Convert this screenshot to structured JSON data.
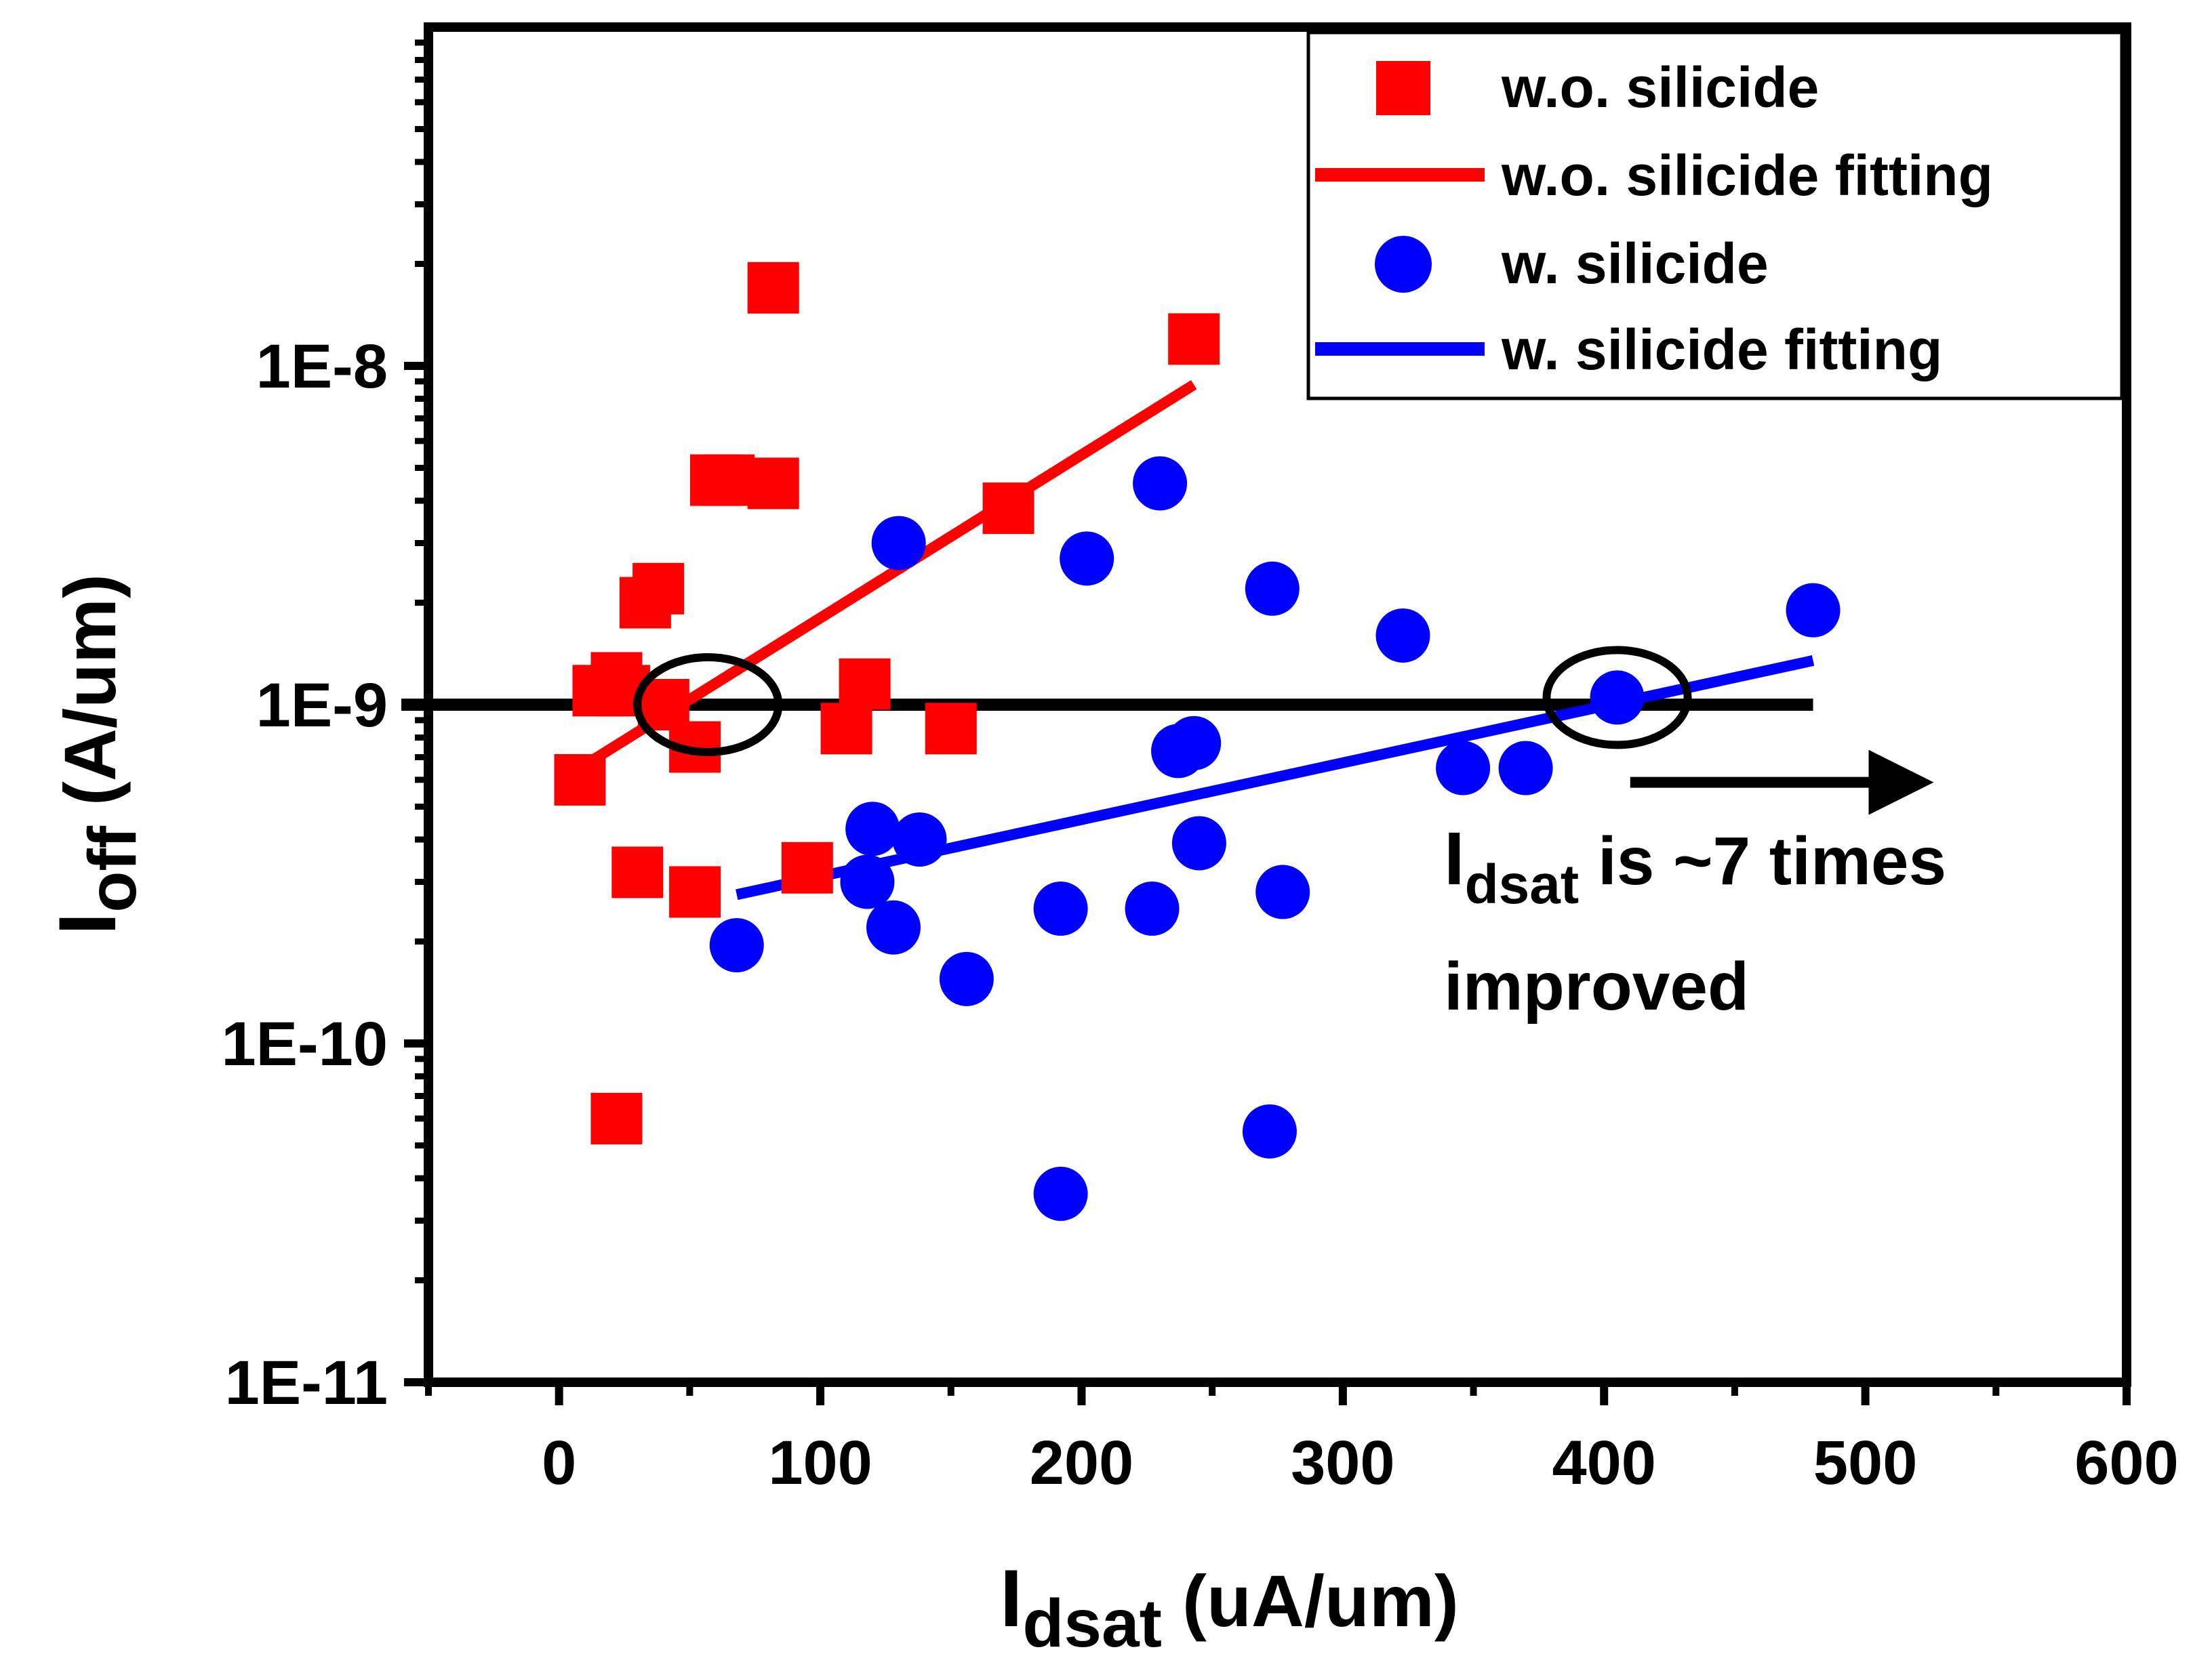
{
  "chart_data": {
    "type": "scatter",
    "x": {
      "label_main": "I",
      "label_sub": "dsat",
      "label_units": " (uA/um)",
      "range": [
        -50,
        600
      ],
      "ticks": [
        0,
        100,
        200,
        300,
        400,
        500,
        600
      ],
      "tick_labels": [
        "0",
        "100",
        "200",
        "300",
        "400",
        "500",
        "600"
      ],
      "scale": "linear"
    },
    "y": {
      "label_main": "I",
      "label_sub": "off",
      "label_units": " (A/um)",
      "range": [
        1e-11,
        1e-07
      ],
      "ticks": [
        1e-11,
        1e-10,
        1e-09,
        1e-08
      ],
      "tick_labels": [
        "1E-11",
        "1E-10",
        "1E-9",
        "1E-8"
      ],
      "scale": "log"
    },
    "series": [
      {
        "name": "w.o. silicide",
        "marker": "square",
        "color": "#ff0000",
        "points": [
          [
            8,
            6e-10
          ],
          [
            15,
            1.1e-09
          ],
          [
            22,
            1.2e-09
          ],
          [
            25,
            1.1e-09
          ],
          [
            30,
            3.2e-10
          ],
          [
            33,
            2e-09
          ],
          [
            38,
            2.2e-09
          ],
          [
            40,
            1e-09
          ],
          [
            52,
            2.8e-10
          ],
          [
            52,
            7.5e-10
          ],
          [
            60,
            4.6e-09
          ],
          [
            65,
            4.6e-09
          ],
          [
            82,
            1.7e-08
          ],
          [
            82,
            4.5e-09
          ],
          [
            95,
            3.3e-10
          ],
          [
            110,
            8.5e-10
          ],
          [
            117,
            1.15e-09
          ],
          [
            150,
            8.5e-10
          ],
          [
            172,
            3.8e-09
          ],
          [
            243,
            1.2e-08
          ],
          [
            22,
            6e-11
          ]
        ]
      },
      {
        "name": "w.o. silicide fitting",
        "line": true,
        "color": "#ff0000",
        "points": [
          [
            8,
            6.5e-10
          ],
          [
            243,
            8.8e-09
          ]
        ]
      },
      {
        "name": "w. silicide",
        "marker": "circle",
        "color": "#0000ff",
        "points": [
          [
            68,
            1.95e-10
          ],
          [
            118,
            3e-10
          ],
          [
            120,
            4.3e-10
          ],
          [
            128,
            2.2e-10
          ],
          [
            130,
            3e-09
          ],
          [
            138,
            4e-10
          ],
          [
            156,
            1.55e-10
          ],
          [
            192,
            3.6e-11
          ],
          [
            192,
            2.5e-10
          ],
          [
            202,
            2.7e-09
          ],
          [
            227,
            2.5e-10
          ],
          [
            230,
            4.5e-09
          ],
          [
            237,
            7.3e-10
          ],
          [
            243,
            7.7e-10
          ],
          [
            245,
            3.9e-10
          ],
          [
            272,
            5.5e-11
          ],
          [
            273,
            2.2e-09
          ],
          [
            277,
            2.8e-10
          ],
          [
            323,
            1.6e-09
          ],
          [
            346,
            6.5e-10
          ],
          [
            370,
            6.5e-10
          ],
          [
            405,
            1.05e-09
          ],
          [
            480,
            1.9e-09
          ]
        ]
      },
      {
        "name": "w. silicide fitting",
        "line": true,
        "color": "#0000ff",
        "points": [
          [
            68,
            2.75e-10
          ],
          [
            480,
            1.35e-09
          ]
        ]
      }
    ],
    "reference_line": {
      "y": 1e-09,
      "x_range": [
        -50,
        480
      ],
      "color": "#000000"
    },
    "ellipses": [
      {
        "cx": 57,
        "cy": 1e-09,
        "rx_data": 27,
        "ry_decades": 0.14
      },
      {
        "cx": 405,
        "cy": 1.05e-09,
        "rx_data": 27,
        "ry_decades": 0.14
      }
    ],
    "arrow": {
      "from": [
        410,
        5.9e-10
      ],
      "to": [
        535,
        5.9e-10
      ]
    },
    "annotation": {
      "line1_main": "I",
      "line1_sub": "dsat",
      "line1_rest": " is ~7 times",
      "line2": "improved"
    },
    "legend": {
      "position": "top-right",
      "entries": [
        {
          "label": "w.o. silicide",
          "symbol": "square",
          "color": "#ff0000"
        },
        {
          "label": "w.o. silicide fitting",
          "symbol": "line",
          "color": "#ff0000"
        },
        {
          "label": "w. silicide",
          "symbol": "circle",
          "color": "#0000ff"
        },
        {
          "label": "w. silicide fitting",
          "symbol": "line",
          "color": "#0000ff"
        }
      ]
    }
  }
}
